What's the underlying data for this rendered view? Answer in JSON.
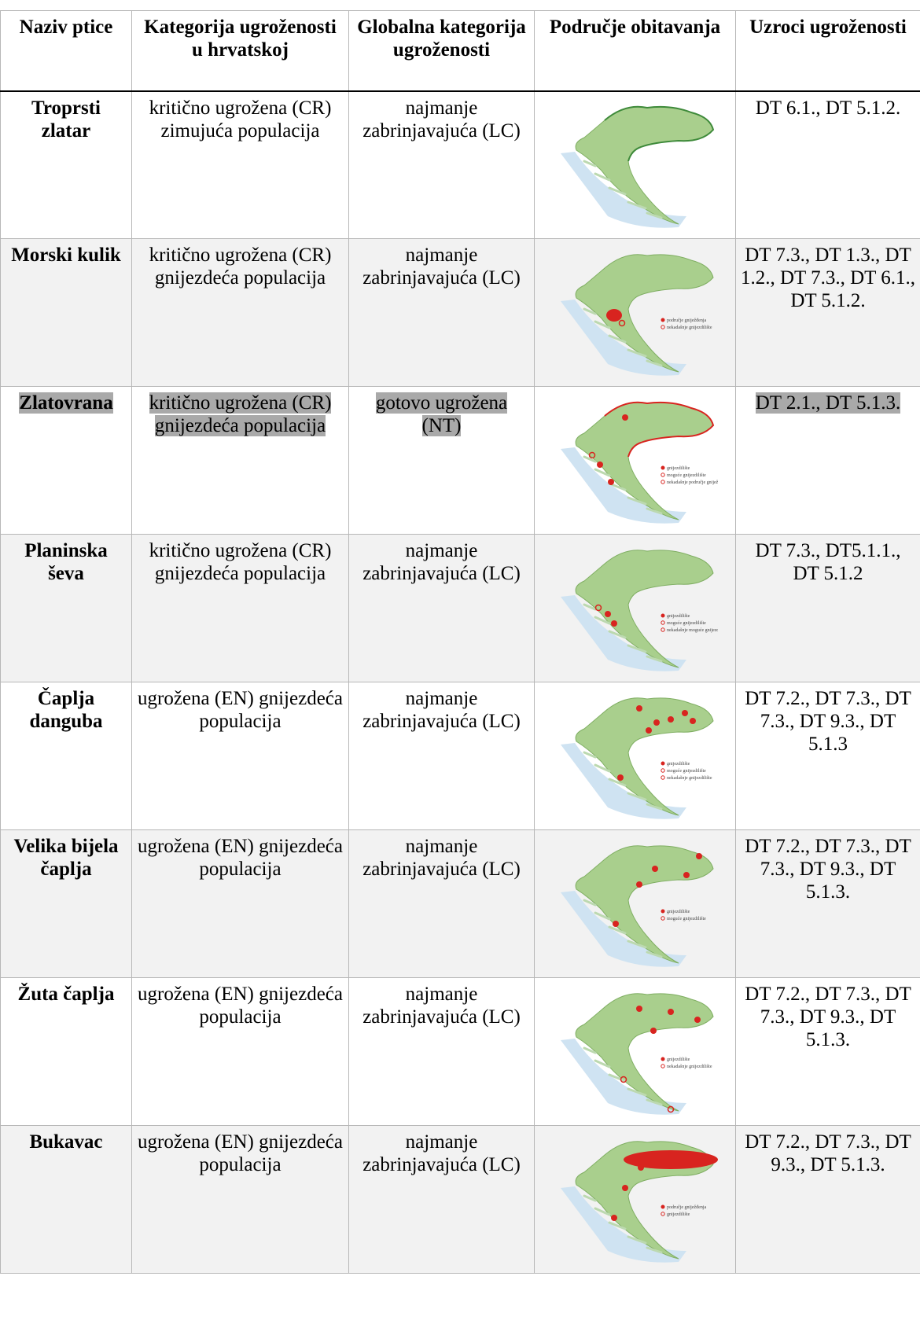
{
  "headers": {
    "name": "Naziv ptice",
    "category_hr": "Kategorija ugroženosti u hrvatskoj",
    "category_global": "Globalna kategorija ugroženosti",
    "habitat": "Područje obitavanja",
    "causes": "Uzroci ugroženosti"
  },
  "rows": [
    {
      "name": "Troprsti zlatar",
      "category_hr": "kritično ugrožena (CR) zimujuća populacija",
      "category_global": "najmanje zabrinjavajuća (LC)",
      "causes": "DT 6.1., DT 5.1.2.",
      "map_legend": []
    },
    {
      "name": "Morski kulik",
      "category_hr": "kritično ugrožena (CR) gnijezdeća populacija",
      "category_global": "najmanje zabrinjavajuća (LC)",
      "causes": "DT 7.3., DT 1.3., DT 1.2., DT 7.3., DT 6.1., DT 5.1.2.",
      "map_legend": [
        "područje gniježđenja",
        "nekadašnje gnijezdilište"
      ]
    },
    {
      "name": "Zlatovrana",
      "category_hr": "kritično ugrožena (CR) gnijezdeća populacija",
      "category_global": "gotovo ugrožena (NT)",
      "causes": "DT 2.1., DT 5.1.3.",
      "highlighted": true,
      "map_legend": [
        "gnijezdilište",
        "moguće gnijezdilište",
        "nekadašnje područje gniježđenja"
      ]
    },
    {
      "name": "Planinska ševa",
      "category_hr": "kritično ugrožena (CR) gnijezdeća populacija",
      "category_global": "najmanje zabrinjavajuća (LC)",
      "causes": "DT 7.3., DT5.1.1., DT 5.1.2",
      "map_legend": [
        "gnijezdilište",
        "moguće gnijezdilište",
        "nekadašnje moguće gnijezdilište"
      ]
    },
    {
      "name": "Čaplja danguba",
      "category_hr": "ugrožena (EN) gnijezdeća populacija",
      "category_global": "najmanje zabrinjavajuća (LC)",
      "causes": "DT 7.2., DT 7.3., DT 7.3., DT 9.3., DT 5.1.3",
      "map_legend": [
        "gnijezdilište",
        "moguće gnijezdilište",
        "nekadašnje gnijezdilište"
      ]
    },
    {
      "name": "Velika bijela čaplja",
      "category_hr": "ugrožena (EN) gnijezdeća populacija",
      "category_global": "najmanje zabrinjavajuća (LC)",
      "causes": "DT 7.2., DT 7.3., DT 7.3., DT 9.3., DT 5.1.3.",
      "map_legend": [
        "gnijezdilište",
        "moguće gnijezdilište"
      ]
    },
    {
      "name": "Žuta čaplja",
      "category_hr": "ugrožena (EN) gnijezdeća populacija",
      "category_global": "najmanje zabrinjavajuća (LC)",
      "causes": "DT 7.2., DT 7.3., DT 7.3., DT 9.3., DT 5.1.3.",
      "map_legend": [
        "gnijezdilište",
        "nekadašnje gnijezdilište"
      ]
    },
    {
      "name": "Bukavac",
      "category_hr": "ugrožena (EN) gnijezdeća populacija",
      "category_global": "najmanje zabrinjavajuća (LC)",
      "causes": "DT 7.2., DT 7.3., DT 9.3., DT 5.1.3.",
      "map_legend": [
        "područje gniježđenja",
        "gnijezdilište"
      ]
    }
  ],
  "colors": {
    "grid": "#b7b7b7",
    "stripe": "#f2f2f2",
    "highlight": "#a9a9a9",
    "map_land": "#a9cf8d",
    "map_sea": "#cfe3f2",
    "map_marker": "#d8241f"
  }
}
